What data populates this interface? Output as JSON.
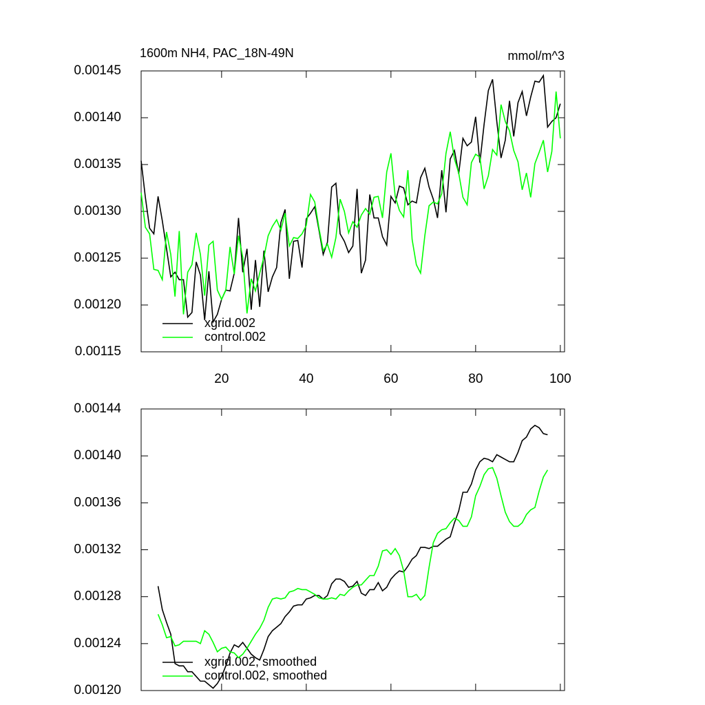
{
  "chart_data": [
    {
      "type": "line",
      "title": "1600m NH4, PAC_18N-49N",
      "units": "mmol/m^3",
      "x": [
        1,
        2,
        3,
        4,
        5,
        6,
        7,
        8,
        9,
        10,
        11,
        12,
        13,
        14,
        15,
        16,
        17,
        18,
        19,
        20,
        21,
        22,
        23,
        24,
        25,
        26,
        27,
        28,
        29,
        30,
        31,
        32,
        33,
        34,
        35,
        36,
        37,
        38,
        39,
        40,
        41,
        42,
        43,
        44,
        45,
        46,
        47,
        48,
        49,
        50,
        51,
        52,
        53,
        54,
        55,
        56,
        57,
        58,
        59,
        60,
        61,
        62,
        63,
        64,
        65,
        66,
        67,
        68,
        69,
        70,
        71,
        72,
        73,
        74,
        75,
        76,
        77,
        78,
        79,
        80,
        81,
        82,
        83,
        84,
        85,
        86,
        87,
        88,
        89,
        90,
        91,
        92,
        93,
        94,
        95,
        96,
        97,
        98,
        99,
        100
      ],
      "series": [
        {
          "name": "xgrid.002",
          "color": "#000000",
          "values": [
            0.001354,
            0.001315,
            0.001282,
            0.001276,
            0.001316,
            0.00129,
            0.00126,
            0.00123,
            0.001235,
            0.001227,
            0.001227,
            0.001187,
            0.001192,
            0.001246,
            0.001232,
            0.001184,
            0.001236,
            0.001182,
            0.00119,
            0.001206,
            0.001216,
            0.001215,
            0.001234,
            0.001293,
            0.001235,
            0.00126,
            0.001195,
            0.001248,
            0.001198,
            0.001258,
            0.001214,
            0.00123,
            0.00124,
            0.001288,
            0.001302,
            0.001228,
            0.001268,
            0.001269,
            0.00124,
            0.001292,
            0.001298,
            0.001305,
            0.00128,
            0.001254,
            0.001267,
            0.001326,
            0.00133,
            0.001276,
            0.001268,
            0.001256,
            0.001263,
            0.001324,
            0.001234,
            0.001248,
            0.001318,
            0.001293,
            0.001293,
            0.001273,
            0.001264,
            0.001316,
            0.001309,
            0.001327,
            0.001325,
            0.001307,
            0.001311,
            0.001309,
            0.001336,
            0.001346,
            0.001326,
            0.001313,
            0.001293,
            0.001344,
            0.001299,
            0.001356,
            0.001365,
            0.00134,
            0.001378,
            0.00137,
            0.001374,
            0.001401,
            0.001352,
            0.001393,
            0.001429,
            0.001441,
            0.001396,
            0.001357,
            0.001376,
            0.001418,
            0.00138,
            0.001416,
            0.001428,
            0.001402,
            0.001422,
            0.001439,
            0.001438,
            0.001445,
            0.00139,
            0.001396,
            0.0014,
            0.001415
          ]
        },
        {
          "name": "control.002",
          "color": "#00ff00",
          "values": [
            0.00132,
            0.001283,
            0.001276,
            0.001238,
            0.001237,
            0.001227,
            0.001278,
            0.001254,
            0.001209,
            0.001279,
            0.00119,
            0.001235,
            0.001243,
            0.001277,
            0.001254,
            0.00121,
            0.001264,
            0.001268,
            0.001216,
            0.001206,
            0.001216,
            0.001262,
            0.001233,
            0.001274,
            0.001251,
            0.001191,
            0.001228,
            0.001215,
            0.001234,
            0.001251,
            0.001274,
            0.001284,
            0.001291,
            0.00128,
            0.001298,
            0.001263,
            0.001272,
            0.001271,
            0.001276,
            0.001285,
            0.001318,
            0.00131,
            0.001282,
            0.001258,
            0.001265,
            0.001251,
            0.001272,
            0.001313,
            0.0013,
            0.001277,
            0.001289,
            0.001283,
            0.001296,
            0.001303,
            0.001297,
            0.001315,
            0.001316,
            0.001293,
            0.001342,
            0.001362,
            0.001316,
            0.001301,
            0.001294,
            0.001344,
            0.00127,
            0.001243,
            0.001234,
            0.001274,
            0.001306,
            0.00131,
            0.001308,
            0.001319,
            0.001362,
            0.001385,
            0.001356,
            0.001341,
            0.001315,
            0.001307,
            0.001352,
            0.001361,
            0.001358,
            0.001324,
            0.001338,
            0.001366,
            0.00136,
            0.001414,
            0.001396,
            0.001386,
            0.001365,
            0.001353,
            0.001323,
            0.001341,
            0.001315,
            0.001351,
            0.001363,
            0.001376,
            0.001342,
            0.001364,
            0.001428,
            0.001378
          ]
        }
      ],
      "xlim": [
        1,
        101
      ],
      "xticks": [
        20,
        40,
        60,
        80,
        100
      ],
      "ylim": [
        0.00115,
        0.00145
      ],
      "yticks": [
        0.00115,
        {
          "value": 0.0012,
          "label": "0.00120"
        },
        0.00125,
        {
          "value": 0.0013,
          "label": "0.00130"
        },
        0.00135,
        {
          "value": 0.0014,
          "label": "0.00140"
        },
        0.00145
      ],
      "legend": "lower left"
    },
    {
      "type": "line",
      "x": [
        5,
        6,
        7,
        8,
        9,
        10,
        11,
        12,
        13,
        14,
        15,
        16,
        17,
        18,
        19,
        20,
        21,
        22,
        23,
        24,
        25,
        26,
        27,
        28,
        29,
        30,
        31,
        32,
        33,
        34,
        35,
        36,
        37,
        38,
        39,
        40,
        41,
        42,
        43,
        44,
        45,
        46,
        47,
        48,
        49,
        50,
        51,
        52,
        53,
        54,
        55,
        56,
        57,
        58,
        59,
        60,
        61,
        62,
        63,
        64,
        65,
        66,
        67,
        68,
        69,
        70,
        71,
        72,
        73,
        74,
        75,
        76,
        77,
        78,
        79,
        80,
        81,
        82,
        83,
        84,
        85,
        86,
        87,
        88,
        89,
        90,
        91,
        92,
        93,
        94,
        95,
        96,
        97
      ],
      "series": [
        {
          "name": "xgrid.002, smoothed",
          "color": "#000000",
          "values": [
            0.001289,
            0.001269,
            0.001258,
            0.001248,
            0.001223,
            0.001221,
            0.001221,
            0.001216,
            0.001216,
            0.001212,
            0.001208,
            0.001208,
            0.001205,
            0.001202,
            0.001206,
            0.001212,
            0.001221,
            0.001232,
            0.001239,
            0.001237,
            0.001241,
            0.001236,
            0.001231,
            0.001228,
            0.001226,
            0.001235,
            0.001246,
            0.001251,
            0.001254,
            0.001257,
            0.001263,
            0.001267,
            0.001272,
            0.001273,
            0.001273,
            0.001278,
            0.001279,
            0.001281,
            0.001281,
            0.001278,
            0.001281,
            0.001291,
            0.001295,
            0.001295,
            0.001293,
            0.001288,
            0.001289,
            0.001293,
            0.001283,
            0.001281,
            0.001286,
            0.001286,
            0.001292,
            0.001285,
            0.001288,
            0.001295,
            0.001299,
            0.001302,
            0.001301,
            0.001306,
            0.001312,
            0.001315,
            0.001322,
            0.001322,
            0.001321,
            0.001323,
            0.001323,
            0.001326,
            0.001329,
            0.001331,
            0.001343,
            0.001353,
            0.001369,
            0.001369,
            0.001376,
            0.001388,
            0.001395,
            0.001398,
            0.001397,
            0.001395,
            0.001401,
            0.001399,
            0.001397,
            0.001395,
            0.001395,
            0.001403,
            0.001413,
            0.001416,
            0.001423,
            0.001426,
            0.001424,
            0.001419,
            0.001418
          ]
        },
        {
          "name": "control.002, smoothed",
          "color": "#00ff00",
          "values": [
            0.001265,
            0.001256,
            0.001245,
            0.001246,
            0.001238,
            0.001239,
            0.001242,
            0.001242,
            0.001242,
            0.001242,
            0.00124,
            0.001251,
            0.001248,
            0.001241,
            0.001233,
            0.001236,
            0.001237,
            0.001233,
            0.001232,
            0.001228,
            0.001231,
            0.001236,
            0.001242,
            0.001248,
            0.001253,
            0.00126,
            0.001271,
            0.001278,
            0.001279,
            0.001278,
            0.001279,
            0.001284,
            0.001285,
            0.001287,
            0.001286,
            0.001286,
            0.001284,
            0.001282,
            0.001279,
            0.001278,
            0.001278,
            0.001279,
            0.001278,
            0.001282,
            0.001281,
            0.001285,
            0.001288,
            0.00129,
            0.00129,
            0.001294,
            0.001298,
            0.001298,
            0.001306,
            0.001319,
            0.00132,
            0.001316,
            0.001321,
            0.001315,
            0.001302,
            0.00128,
            0.00128,
            0.001282,
            0.001277,
            0.001281,
            0.001305,
            0.001326,
            0.001334,
            0.001337,
            0.001338,
            0.001343,
            0.001347,
            0.001345,
            0.00134,
            0.00134,
            0.001348,
            0.001366,
            0.001374,
            0.001384,
            0.001389,
            0.00139,
            0.001381,
            0.001366,
            0.001352,
            0.001344,
            0.00134,
            0.00134,
            0.001343,
            0.00135,
            0.001354,
            0.001356,
            0.00137,
            0.001382,
            0.001388
          ]
        }
      ],
      "xlim": [
        1,
        101
      ],
      "xticks": [
        20,
        40,
        60,
        80,
        100
      ],
      "ylim": [
        0.0012,
        0.00144
      ],
      "yticks": [
        {
          "value": 0.0012,
          "label": "0.00120"
        },
        0.00124,
        0.00128,
        0.00132,
        0.00136,
        {
          "value": 0.0014,
          "label": "0.00140"
        },
        0.00144
      ],
      "legend": "lower left"
    }
  ]
}
